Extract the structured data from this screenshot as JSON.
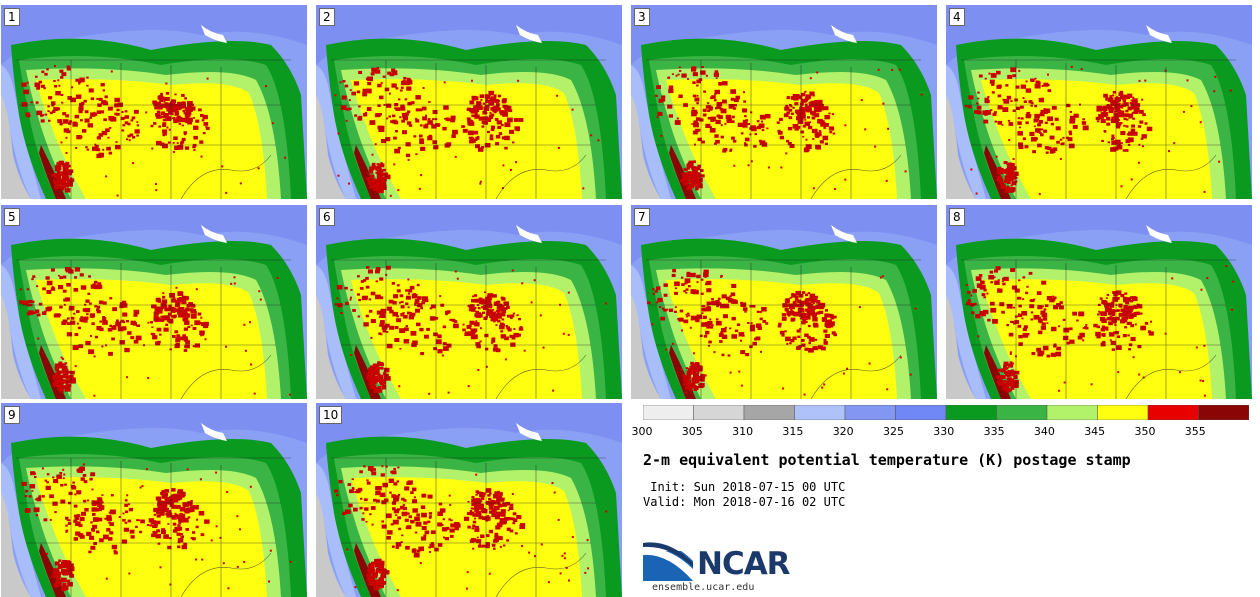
{
  "panels": [
    {
      "label": "1"
    },
    {
      "label": "2"
    },
    {
      "label": "3"
    },
    {
      "label": "4"
    },
    {
      "label": "5"
    },
    {
      "label": "6"
    },
    {
      "label": "7"
    },
    {
      "label": "8"
    },
    {
      "label": "9"
    },
    {
      "label": "10"
    }
  ],
  "colorbar": {
    "ticks": [
      "300",
      "305",
      "310",
      "315",
      "320",
      "325",
      "330",
      "335",
      "340",
      "345",
      "350",
      "355"
    ],
    "colors": [
      "#eeeeee",
      "#d6d6d6",
      "#a6a6a6",
      "#b0c2fa",
      "#8296f2",
      "#7088f5",
      "#0a9a20",
      "#3ab444",
      "#b2f26a",
      "#ffff10",
      "#e80000",
      "#8a0606"
    ]
  },
  "title": "2-m equivalent potential temperature (K) postage stamp",
  "init": " Init: Sun 2018-07-15 00 UTC",
  "valid": "Valid: Mon 2018-07-16 02 UTC",
  "logo": {
    "word": "NCAR",
    "site": "ensemble.ucar.edu"
  }
}
